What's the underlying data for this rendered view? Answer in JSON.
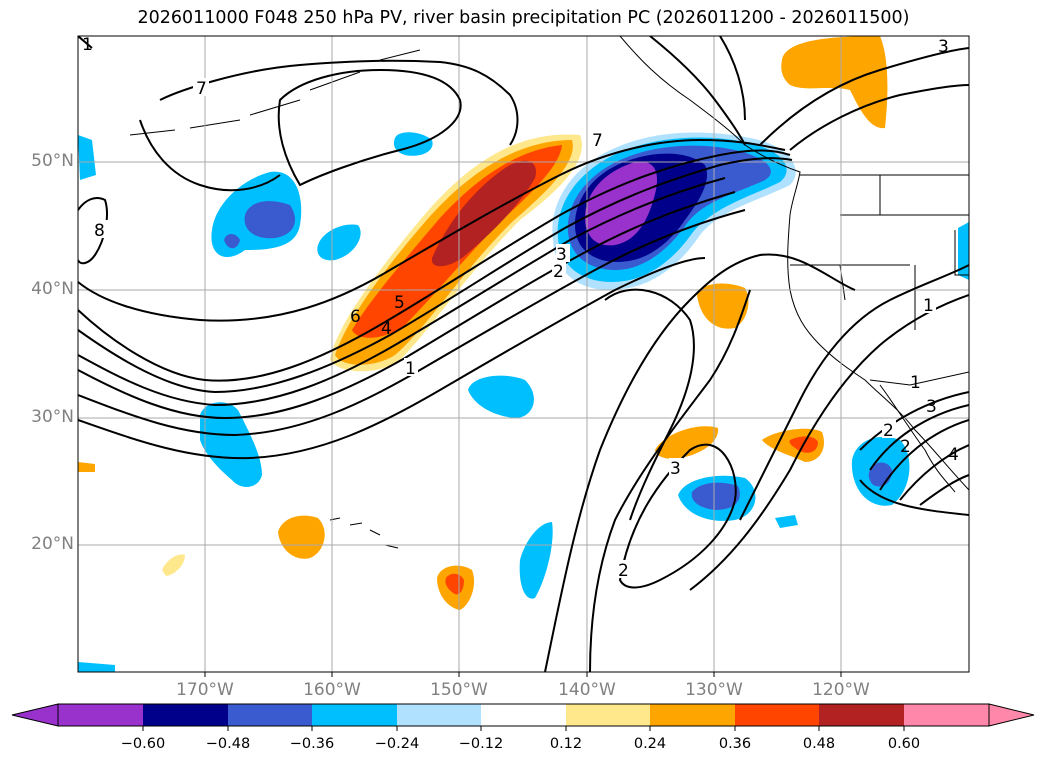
{
  "title": "2026011000 F048 250 hPa PV, river basin precipitation PC (2026011200 - 2026011500)",
  "lat_labels": [
    "50°N",
    "40°N",
    "30°N",
    "20°N"
  ],
  "lon_labels": [
    "170°W",
    "160°W",
    "150°W",
    "140°W",
    "130°W",
    "120°W"
  ],
  "contour_labels": [
    "7",
    "1",
    "8",
    "7",
    "3",
    "3",
    "2",
    "6",
    "5",
    "4",
    "1",
    "1",
    "3",
    "2",
    "1",
    "2",
    "3",
    "4",
    "2"
  ],
  "colorbar": {
    "ticks": [
      "−0.60",
      "−0.48",
      "−0.36",
      "−0.24",
      "−0.12",
      "0.12",
      "0.24",
      "0.36",
      "0.48",
      "0.60"
    ],
    "colors": [
      "#9932cc",
      "#00008b",
      "#3a5bd0",
      "#00bfff",
      "#b0e2ff",
      "#ffffff",
      "#ffe88c",
      "#ffa500",
      "#ff4500",
      "#b22222",
      "#ff88aa"
    ]
  },
  "colors": {
    "purple": "#9932cc",
    "navy": "#00008b",
    "royal": "#3a5bd0",
    "sky": "#00bfff",
    "light_blue": "#b0e2ff",
    "yellow": "#ffe88c",
    "orange": "#ffa500",
    "red_orange": "#ff4500",
    "firebrick": "#b22222",
    "pink": "#ff88aa",
    "grid": "#a9a9a9",
    "tick_label": "#808080"
  }
}
